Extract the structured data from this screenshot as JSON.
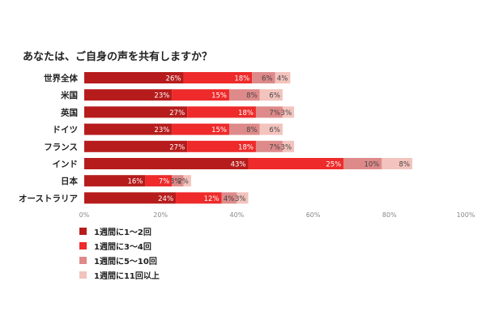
{
  "chart_data": {
    "type": "bar",
    "orientation": "horizontal",
    "stacked": true,
    "title": "あなたは、ご自身の声を共有しますか？",
    "categories": [
      "世界全体",
      "米国",
      "英国",
      "ドイツ",
      "フランス",
      "インド",
      "日本",
      "オーストラリア"
    ],
    "series": [
      {
        "name": "1週間に1～2回",
        "color": "#b71c1c",
        "values": [
          26,
          23,
          27,
          23,
          27,
          43,
          16,
          24
        ]
      },
      {
        "name": "1週間に3～4回",
        "color": "#ee2a2a",
        "values": [
          18,
          15,
          18,
          15,
          18,
          25,
          7,
          12
        ]
      },
      {
        "name": "1週間に5～10回",
        "color": "#de8a8a",
        "values": [
          6,
          8,
          7,
          8,
          7,
          10,
          3,
          4
        ]
      },
      {
        "name": "1週間に11回以上",
        "color": "#f3c3bd",
        "values": [
          4,
          6,
          3,
          6,
          3,
          8,
          2,
          3
        ]
      }
    ],
    "data_labels": [
      [
        "26%",
        "18%",
        "6%",
        "4%"
      ],
      [
        "23%",
        "15%",
        "8%",
        "6%"
      ],
      [
        "27%",
        "18%",
        "7%",
        "3%"
      ],
      [
        "23%",
        "15%",
        "8%",
        "6%"
      ],
      [
        "27%",
        "18%",
        "7%",
        "3%"
      ],
      [
        "43%",
        "25%",
        "10%",
        "8%"
      ],
      [
        "16%",
        "7%",
        "3%",
        "2%"
      ],
      [
        "24%",
        "12%",
        "4%",
        "3%"
      ]
    ],
    "x_ticks": [
      "0%",
      "20%",
      "40%",
      "60%",
      "80%",
      "100%"
    ],
    "xlim": [
      0,
      100
    ],
    "legend_position": "bottom-left",
    "grid": false
  }
}
